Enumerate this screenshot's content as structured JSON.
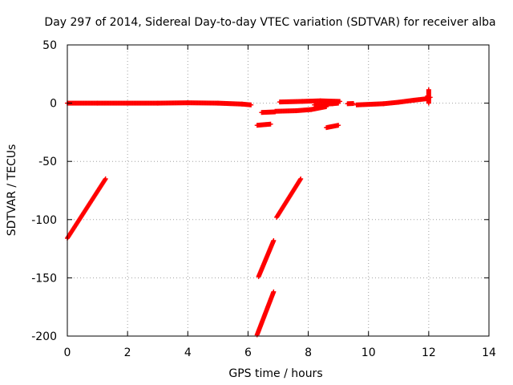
{
  "chart_data": {
    "type": "scatter",
    "title": "Day 297 of 2014, Sidereal Day-to-day VTEC variation (SDTVAR) for receiver alba",
    "xlabel": "GPS time / hours",
    "ylabel": "SDTVAR / TECUs",
    "xlim": [
      0,
      14
    ],
    "ylim": [
      -200,
      50
    ],
    "x_ticks": [
      0,
      2,
      4,
      6,
      8,
      10,
      12,
      14
    ],
    "y_ticks": [
      -200,
      -150,
      -100,
      -50,
      0,
      50
    ],
    "grid": true,
    "marker": "+",
    "series_color": "#ff0000",
    "segments": [
      {
        "x": [
          0.0,
          1.0,
          2.0,
          3.0,
          4.0,
          5.0,
          5.8,
          6.1
        ],
        "y": [
          0.0,
          0.0,
          0.0,
          0.0,
          0.3,
          0.0,
          -0.8,
          -1.5
        ]
      },
      {
        "x": [
          0.0,
          1.27
        ],
        "y": [
          -116.0,
          -65.0
        ]
      },
      {
        "x": [
          6.3,
          6.85
        ],
        "y": [
          -199.0,
          -162.0
        ]
      },
      {
        "x": [
          6.35,
          6.85
        ],
        "y": [
          -149.0,
          -118.0
        ]
      },
      {
        "x": [
          6.95,
          7.75
        ],
        "y": [
          -98.0,
          -65.0
        ]
      },
      {
        "x": [
          6.3,
          6.75
        ],
        "y": [
          -19.0,
          -18.0
        ]
      },
      {
        "x": [
          6.45,
          6.9
        ],
        "y": [
          -8.0,
          -7.5
        ]
      },
      {
        "x": [
          6.9,
          7.6,
          8.1,
          8.6
        ],
        "y": [
          -7.0,
          -6.5,
          -5.5,
          -3.0
        ]
      },
      {
        "x": [
          7.05,
          7.8,
          8.4,
          9.05
        ],
        "y": [
          1.0,
          1.5,
          2.0,
          1.5
        ]
      },
      {
        "x": [
          8.2,
          8.8,
          9.0
        ],
        "y": [
          -1.5,
          -0.5,
          0.0
        ]
      },
      {
        "x": [
          8.6,
          9.0
        ],
        "y": [
          -21.0,
          -19.0
        ]
      },
      {
        "x": [
          9.3,
          9.5
        ],
        "y": [
          -0.5,
          -0.3
        ]
      },
      {
        "x": [
          9.6,
          10.5,
          11.0,
          11.5,
          12.0
        ],
        "y": [
          -1.5,
          -0.5,
          0.8,
          2.5,
          4.0
        ]
      },
      {
        "x": [
          11.9,
          12.05
        ],
        "y": [
          4.5,
          5.0
        ]
      }
    ],
    "spike": {
      "x": 12.0,
      "y": [
        0.0,
        11.5
      ]
    }
  }
}
